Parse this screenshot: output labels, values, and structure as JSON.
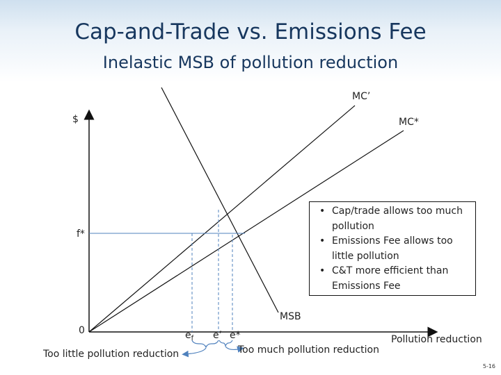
{
  "title": "Cap-and-Trade vs. Emissions Fee",
  "subtitle": "Inelastic MSB of pollution reduction",
  "labels": {
    "y_axis": "$",
    "x_axis": "Pollution reduction",
    "origin": "0",
    "fee": "f*",
    "mc_prime": "MC’",
    "mc_star": "MC*",
    "msb": "MSB",
    "e_f": "e",
    "e_f_sub": "f",
    "e_prime": "e’",
    "e_star": "e*",
    "too_little": "Too little pollution reduction",
    "too_much": "Too much pollution reduction"
  },
  "notes": [
    "Cap/trade allows too much pollution",
    "Emissions Fee allows too little pollution",
    "C&T more efficient than Emissions Fee"
  ],
  "slide_number": "5-16",
  "colors": {
    "title": "#17375e",
    "guide_lines": "#4f81bd",
    "arrow": "#4f81bd"
  }
}
